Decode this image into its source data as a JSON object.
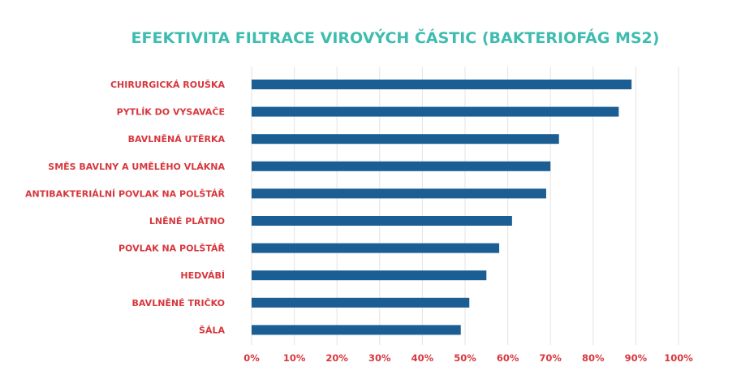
{
  "colors": {
    "title": "#3fbcb0",
    "labels": "#d7373d",
    "bars": "#1b5e93",
    "grid": "#e3e3e3"
  },
  "chart_data": {
    "type": "bar",
    "orientation": "horizontal",
    "title": "EFEKTIVITA FILTRACE VIROVÝCH ČÁSTIC (BAKTERIOFÁG MS2)",
    "xlabel": "",
    "ylabel": "",
    "xlim": [
      0,
      100
    ],
    "grid": true,
    "legend": "none",
    "categories": [
      "CHIRURGICKÁ ROUŠKA",
      "PYTLÍK DO VYSAVAČE",
      "BAVLNĚNÁ UTĚRKA",
      "SMĚS BAVLNY A UMĚLÉHO VLÁKNA",
      "ANTIBAKTERIÁLNÍ POVLAK NA POLŠTÁŘ",
      "LNĚNÉ PLÁTNO",
      "POVLAK NA POLŠTÁŘ",
      "HEDVÁBÍ",
      "BAVLNĚNÉ TRIČKO",
      "ŠÁLA"
    ],
    "values": [
      89,
      86,
      72,
      70,
      69,
      61,
      58,
      55,
      51,
      49
    ],
    "ticks": [
      "0%",
      "10%",
      "20%",
      "30%",
      "40%",
      "50%",
      "60%",
      "70%",
      "80%",
      "90%",
      "100%"
    ]
  }
}
